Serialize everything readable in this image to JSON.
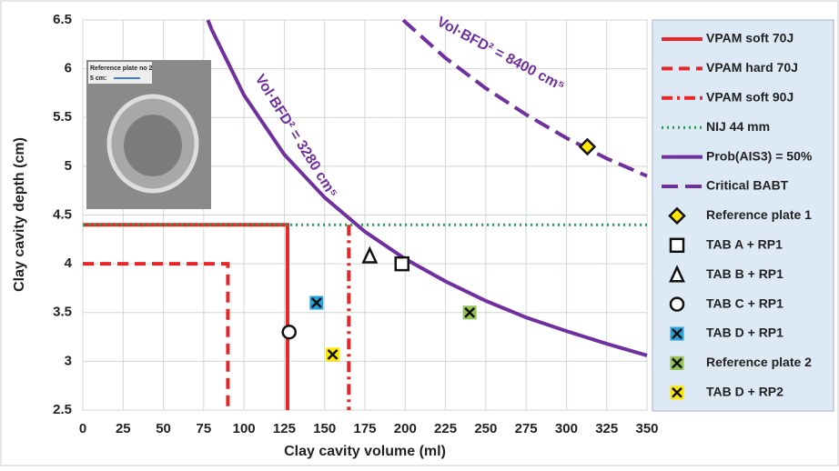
{
  "chart_data": {
    "type": "line",
    "x_label": "Clay cavity volume (ml)",
    "y_label": "Clay cavity depth (cm)",
    "xlim": [
      0,
      350
    ],
    "xticks": [
      0,
      25,
      50,
      75,
      100,
      125,
      150,
      175,
      200,
      225,
      250,
      275,
      300,
      325,
      350
    ],
    "ylim": [
      2.5,
      6.5
    ],
    "yticks": [
      2.5,
      3,
      3.5,
      4,
      4.5,
      5,
      5.5,
      6,
      6.5
    ],
    "grid": true,
    "legend": "right",
    "annotations": [
      "Vol·BFD² = 3280 cm⁵",
      "Vol·BFD² = 8400 cm⁵"
    ],
    "inset": {
      "label": "Reference plate no 2",
      "scale": "5 cm:"
    },
    "series": [
      {
        "name": "VPAM soft 70J",
        "color": "#e8262a",
        "style": "solid",
        "x": [
          0,
          127,
          127
        ],
        "y": [
          4.4,
          4.4,
          2.5
        ]
      },
      {
        "name": "VPAM hard 70J",
        "color": "#e8262a",
        "style": "dashed",
        "x": [
          0,
          90,
          90
        ],
        "y": [
          4,
          4,
          2.5
        ]
      },
      {
        "name": "VPAM soft 90J",
        "color": "#e8262a",
        "style": "dashdot",
        "x": [
          165,
          165
        ],
        "y": [
          4.4,
          2.5
        ]
      },
      {
        "name": "NIJ 44 mm",
        "color": "#1fa34a",
        "style": "dotted",
        "x": [
          0,
          350
        ],
        "y": [
          4.4,
          4.4
        ]
      },
      {
        "name": "Prob(AIS3) = 50%",
        "color": "#7030a0",
        "style": "solid",
        "x": [
          77.6,
          80,
          100,
          125,
          150,
          175,
          200,
          225,
          250,
          275,
          300,
          325,
          350
        ],
        "y": [
          6.5,
          6.4,
          5.73,
          5.12,
          4.68,
          4.33,
          4.05,
          3.82,
          3.62,
          3.45,
          3.31,
          3.18,
          3.06
        ]
      },
      {
        "name": "Critical BABT",
        "color": "#7030a0",
        "style": "longdash",
        "x": [
          198.8,
          200,
          225,
          250,
          275,
          300,
          325,
          350
        ],
        "y": [
          6.5,
          6.48,
          6.11,
          5.8,
          5.53,
          5.29,
          5.08,
          4.9
        ]
      },
      {
        "name": "Reference plate 1",
        "color": "#ffe600",
        "marker": "diamond",
        "x": [
          313
        ],
        "y": [
          5.2
        ]
      },
      {
        "name": "TAB A + RP1",
        "color": "#ffffff",
        "marker": "square",
        "x": [
          198
        ],
        "y": [
          4
        ]
      },
      {
        "name": "TAB B + RP1",
        "color": "#ffffff",
        "marker": "triangle",
        "x": [
          178
        ],
        "y": [
          4.08
        ]
      },
      {
        "name": "TAB C + RP1",
        "color": "#ffffff",
        "marker": "circle",
        "x": [
          128
        ],
        "y": [
          3.3
        ]
      },
      {
        "name": "TAB D + RP1",
        "color": "#2aa0d8",
        "marker": "squarex",
        "x": [
          145
        ],
        "y": [
          3.6
        ]
      },
      {
        "name": "Reference plate 2",
        "color": "#92c353",
        "marker": "squarex",
        "x": [
          240
        ],
        "y": [
          3.5
        ]
      },
      {
        "name": "TAB D + RP2",
        "color": "#ffe600",
        "marker": "squarex",
        "x": [
          155
        ],
        "y": [
          3.07
        ]
      }
    ]
  }
}
